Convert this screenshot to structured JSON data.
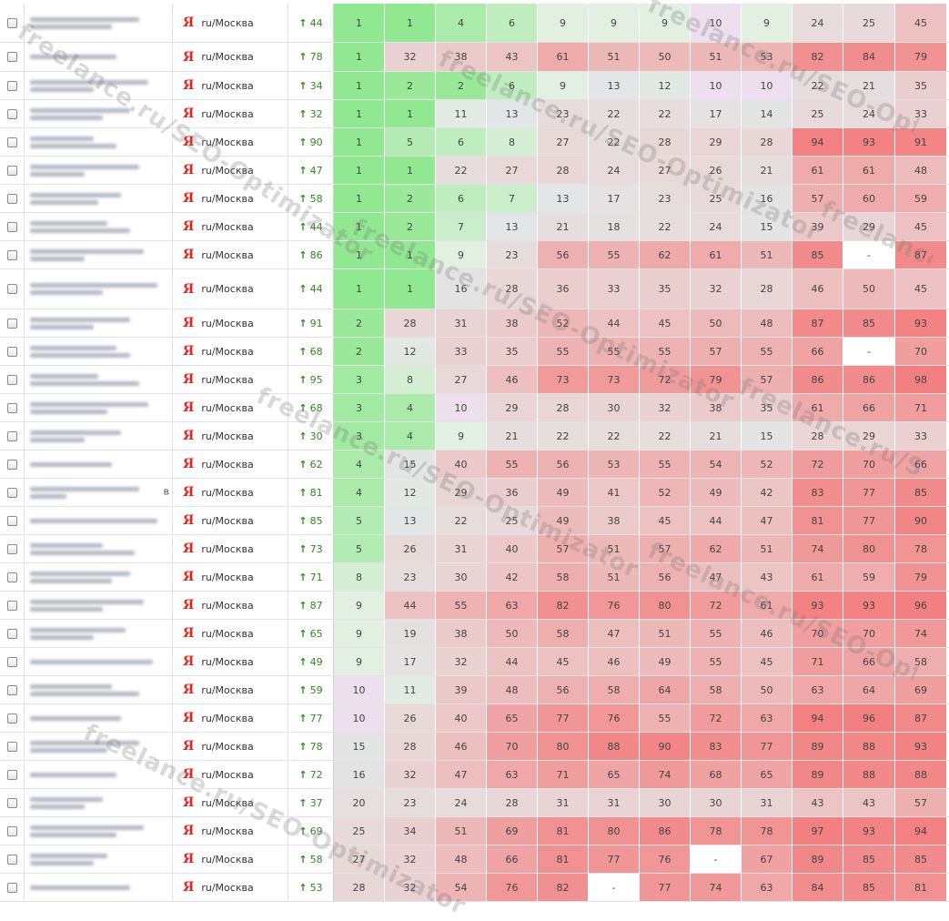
{
  "engine": {
    "logo": "Я",
    "region": "ru/Москва",
    "trend_arrow": "↑"
  },
  "watermark_text": "freelance.ru/SEO-Optimizator",
  "watermark_fragments": [
    "freelance.ru/SEO-Optimizator",
    "freelance.ru/SEO-Optimizator",
    "freelance.ru/SEO-Optimizator",
    "freelance.ru/SEO-Optimizator",
    "freelance.ru/SEO-Optimizator",
    "freelance.ru/SEO-Optimizator",
    "freelance.ru/SEO-Optimizator",
    "freelance.ru/SEO-Optimizator",
    "freelance.ru/SEO-Optimizator"
  ],
  "rows": [
    {
      "change": "44",
      "positions": [
        "1",
        "1",
        "4",
        "6",
        "9",
        "9",
        "9",
        "10",
        "9",
        "24",
        "25",
        "45"
      ]
    },
    {
      "change": "78",
      "positions": [
        "1",
        "32",
        "38",
        "43",
        "61",
        "51",
        "50",
        "51",
        "53",
        "82",
        "84",
        "79"
      ]
    },
    {
      "change": "34",
      "positions": [
        "1",
        "2",
        "2",
        "6",
        "9",
        "13",
        "12",
        "10",
        "10",
        "22",
        "21",
        "35"
      ]
    },
    {
      "change": "32",
      "positions": [
        "1",
        "1",
        "11",
        "13",
        "23",
        "22",
        "22",
        "17",
        "14",
        "25",
        "24",
        "33"
      ]
    },
    {
      "change": "90",
      "positions": [
        "1",
        "5",
        "6",
        "8",
        "27",
        "22",
        "28",
        "29",
        "28",
        "94",
        "93",
        "91"
      ]
    },
    {
      "change": "47",
      "positions": [
        "1",
        "1",
        "22",
        "27",
        "28",
        "24",
        "27",
        "26",
        "21",
        "61",
        "61",
        "48"
      ]
    },
    {
      "change": "58",
      "positions": [
        "1",
        "2",
        "6",
        "7",
        "13",
        "17",
        "23",
        "25",
        "16",
        "57",
        "60",
        "59"
      ]
    },
    {
      "change": "44",
      "positions": [
        "1",
        "2",
        "7",
        "13",
        "21",
        "18",
        "22",
        "24",
        "15",
        "39",
        "29",
        "45"
      ]
    },
    {
      "change": "86",
      "positions": [
        "1",
        "1",
        "9",
        "23",
        "56",
        "55",
        "62",
        "61",
        "51",
        "85",
        "-",
        "87"
      ]
    },
    {
      "change": "44",
      "positions": [
        "1",
        "1",
        "16",
        "28",
        "36",
        "33",
        "35",
        "32",
        "28",
        "46",
        "50",
        "45"
      ]
    },
    {
      "change": "91",
      "positions": [
        "2",
        "28",
        "31",
        "38",
        "52",
        "44",
        "45",
        "50",
        "48",
        "87",
        "85",
        "93"
      ]
    },
    {
      "change": "68",
      "positions": [
        "2",
        "12",
        "33",
        "35",
        "55",
        "55",
        "55",
        "57",
        "55",
        "66",
        "-",
        "70"
      ]
    },
    {
      "change": "95",
      "positions": [
        "3",
        "8",
        "27",
        "46",
        "73",
        "73",
        "72",
        "79",
        "57",
        "86",
        "86",
        "98"
      ]
    },
    {
      "change": "68",
      "positions": [
        "3",
        "4",
        "10",
        "29",
        "28",
        "30",
        "32",
        "38",
        "35",
        "61",
        "66",
        "71"
      ]
    },
    {
      "change": "30",
      "positions": [
        "3",
        "4",
        "9",
        "21",
        "22",
        "22",
        "22",
        "21",
        "15",
        "28",
        "29",
        "33"
      ]
    },
    {
      "change": "62",
      "positions": [
        "4",
        "15",
        "40",
        "55",
        "56",
        "53",
        "55",
        "54",
        "52",
        "72",
        "70",
        "66"
      ]
    },
    {
      "change": "81",
      "positions": [
        "4",
        "12",
        "29",
        "36",
        "49",
        "41",
        "52",
        "49",
        "42",
        "83",
        "77",
        "85"
      ],
      "query_trail": "в"
    },
    {
      "change": "85",
      "positions": [
        "5",
        "13",
        "22",
        "25",
        "49",
        "38",
        "45",
        "44",
        "47",
        "81",
        "77",
        "90"
      ]
    },
    {
      "change": "73",
      "positions": [
        "5",
        "26",
        "31",
        "40",
        "57",
        "51",
        "57",
        "62",
        "51",
        "74",
        "80",
        "78"
      ]
    },
    {
      "change": "71",
      "positions": [
        "8",
        "23",
        "30",
        "42",
        "58",
        "51",
        "56",
        "47",
        "43",
        "61",
        "59",
        "79"
      ]
    },
    {
      "change": "87",
      "positions": [
        "9",
        "44",
        "55",
        "63",
        "82",
        "76",
        "80",
        "72",
        "61",
        "93",
        "93",
        "96"
      ]
    },
    {
      "change": "65",
      "positions": [
        "9",
        "19",
        "38",
        "50",
        "58",
        "47",
        "51",
        "55",
        "46",
        "70",
        "70",
        "74"
      ]
    },
    {
      "change": "49",
      "positions": [
        "9",
        "17",
        "32",
        "44",
        "45",
        "46",
        "49",
        "55",
        "45",
        "71",
        "66",
        "58"
      ]
    },
    {
      "change": "59",
      "positions": [
        "10",
        "11",
        "39",
        "48",
        "56",
        "58",
        "64",
        "58",
        "50",
        "63",
        "64",
        "69"
      ]
    },
    {
      "change": "77",
      "positions": [
        "10",
        "26",
        "40",
        "65",
        "77",
        "76",
        "55",
        "72",
        "63",
        "94",
        "96",
        "87"
      ]
    },
    {
      "change": "78",
      "positions": [
        "15",
        "28",
        "46",
        "70",
        "80",
        "88",
        "90",
        "83",
        "77",
        "89",
        "88",
        "93"
      ]
    },
    {
      "change": "72",
      "positions": [
        "16",
        "32",
        "47",
        "63",
        "71",
        "65",
        "74",
        "68",
        "65",
        "89",
        "88",
        "88"
      ]
    },
    {
      "change": "37",
      "positions": [
        "20",
        "23",
        "24",
        "28",
        "31",
        "31",
        "30",
        "30",
        "31",
        "43",
        "43",
        "57"
      ]
    },
    {
      "change": "69",
      "positions": [
        "25",
        "34",
        "51",
        "69",
        "81",
        "80",
        "86",
        "78",
        "78",
        "97",
        "93",
        "94"
      ]
    },
    {
      "change": "58",
      "positions": [
        "27",
        "32",
        "48",
        "66",
        "81",
        "77",
        "76",
        "-",
        "67",
        "89",
        "85",
        "85"
      ]
    },
    {
      "change": "53",
      "positions": [
        "28",
        "32",
        "54",
        "76",
        "82",
        "-",
        "77",
        "74",
        "63",
        "84",
        "85",
        "81"
      ]
    }
  ]
}
